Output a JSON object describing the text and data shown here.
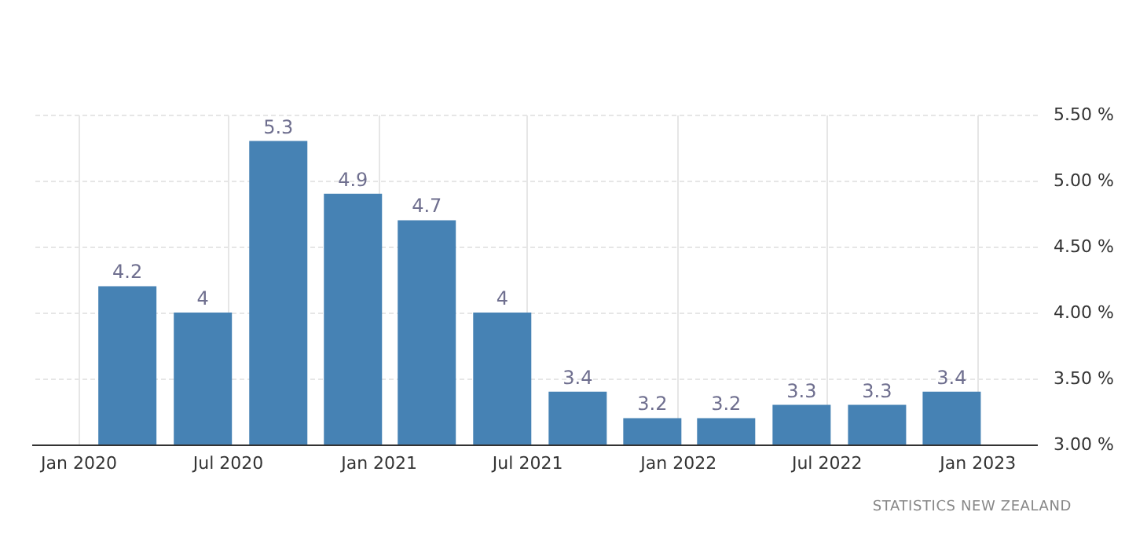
{
  "chart_data": {
    "type": "bar",
    "x": [
      "2020-03",
      "2020-06",
      "2020-09",
      "2020-12",
      "2021-03",
      "2021-06",
      "2021-09",
      "2021-12",
      "2022-03",
      "2022-06",
      "2022-09",
      "2022-12"
    ],
    "values": [
      4.2,
      4,
      5.3,
      4.9,
      4.7,
      4,
      3.4,
      3.2,
      3.2,
      3.3,
      3.3,
      3.4
    ],
    "color": "#4682b4",
    "data_labels": true,
    "xlim": [
      "2019-11-05",
      "2023-03-15"
    ],
    "xticks": [
      {
        "value": "2020-01",
        "label": "Jan 2020"
      },
      {
        "value": "2020-07",
        "label": "Jul 2020"
      },
      {
        "value": "2021-01",
        "label": "Jan 2021"
      },
      {
        "value": "2021-07",
        "label": "Jul 2021"
      },
      {
        "value": "2022-01",
        "label": "Jan 2022"
      },
      {
        "value": "2022-07",
        "label": "Jul 2022"
      },
      {
        "value": "2023-01",
        "label": "Jan 2023"
      }
    ],
    "ylim": [
      3,
      5.5
    ],
    "yticks": [
      {
        "value": 3,
        "label": "3.00 %"
      },
      {
        "value": 3.5,
        "label": "3.50 %"
      },
      {
        "value": 4,
        "label": "4.00 %"
      },
      {
        "value": 4.5,
        "label": "4.50 %"
      },
      {
        "value": 5,
        "label": "5.00 %"
      },
      {
        "value": 5.5,
        "label": "5.50 %"
      }
    ],
    "grid": true,
    "annotations": [
      "STATISTICS NEW ZEALAND"
    ]
  }
}
